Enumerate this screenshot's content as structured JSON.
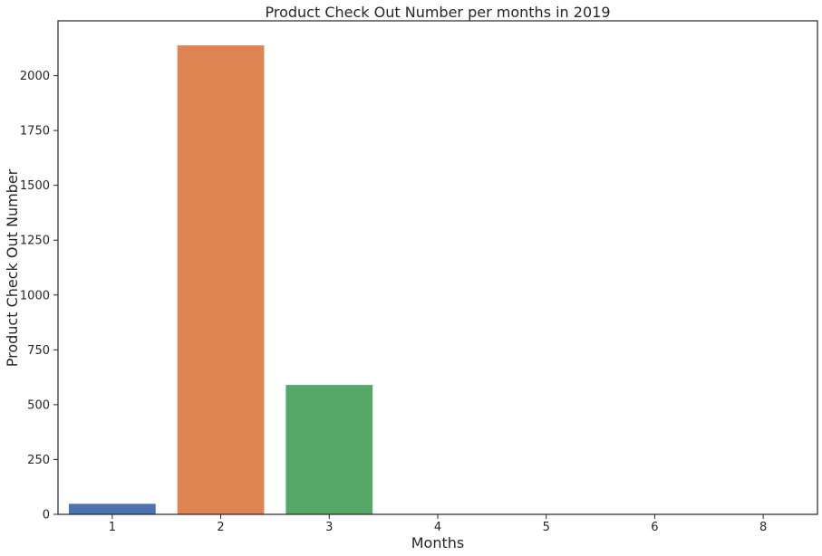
{
  "chart_data": {
    "type": "bar",
    "title": "Product Check Out Number per months in 2019",
    "xlabel": "Months",
    "ylabel": "Product Check Out Number",
    "categories": [
      "1",
      "2",
      "3",
      "4",
      "5",
      "6",
      "8"
    ],
    "values": [
      48,
      2138,
      590,
      0,
      0,
      0,
      0
    ],
    "colors": [
      "#4c72b0",
      "#dd8452",
      "#55a868",
      "#c44e52",
      "#8172b3",
      "#937860",
      "#da8bc3"
    ],
    "ylim": [
      0,
      2250
    ],
    "yticks": [
      0,
      250,
      500,
      750,
      1000,
      1250,
      1500,
      1750,
      2000
    ],
    "grid": false,
    "legend": "none"
  }
}
